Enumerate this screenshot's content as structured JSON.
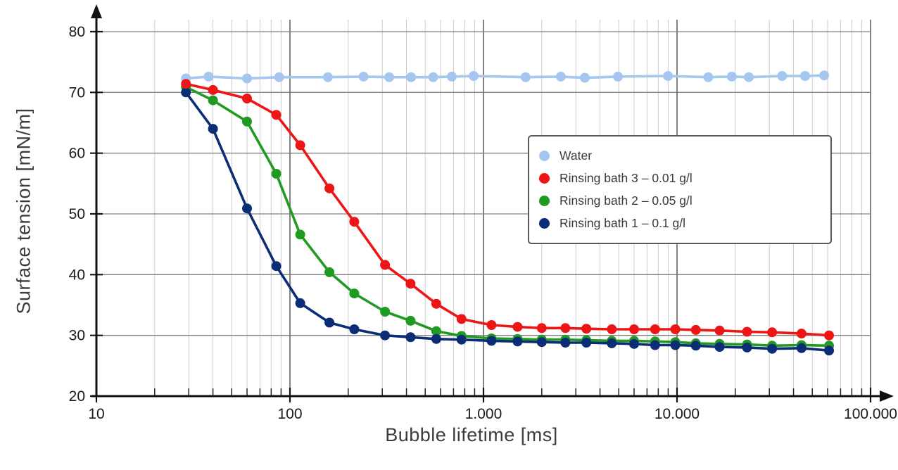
{
  "chart_data": {
    "type": "line",
    "title": "",
    "xlabel": "Bubble lifetime [ms]",
    "ylabel": "Surface tension [mN/m]",
    "x_scale": "log",
    "xlim": [
      10,
      100000
    ],
    "ylim": [
      20,
      80
    ],
    "grid": "on",
    "legend_position": "upper right",
    "x_ticks": {
      "values": [
        10,
        100,
        1000,
        10000,
        100000
      ],
      "labels": [
        "10",
        "100",
        "1.000",
        "10.000",
        "100.000"
      ]
    },
    "y_ticks": [
      20,
      30,
      40,
      50,
      60,
      70,
      80
    ],
    "series": [
      {
        "name": "Water",
        "color": "#a4c6ef",
        "x": [
          29,
          38,
          60,
          88,
          157,
          240,
          326,
          423,
          550,
          686,
          890,
          1650,
          2510,
          3340,
          4950,
          8980,
          14500,
          19200,
          23500,
          34900,
          45900,
          57600
        ],
        "y": [
          72.3,
          72.6,
          72.3,
          72.5,
          72.5,
          72.6,
          72.5,
          72.5,
          72.5,
          72.6,
          72.7,
          72.5,
          72.6,
          72.4,
          72.6,
          72.7,
          72.5,
          72.6,
          72.5,
          72.7,
          72.7,
          72.8
        ]
      },
      {
        "name": "Rinsing bath 3 – 0.01 g/l",
        "color": "#ed1515",
        "x": [
          29,
          40,
          60,
          85,
          113,
          160,
          215,
          310,
          420,
          570,
          770,
          1100,
          1500,
          2000,
          2650,
          3400,
          4600,
          6000,
          7700,
          9800,
          12500,
          16600,
          23000,
          31000,
          44000,
          61000
        ],
        "y": [
          71.4,
          70.4,
          69.0,
          66.3,
          61.3,
          54.2,
          48.7,
          41.6,
          38.5,
          35.2,
          32.7,
          31.7,
          31.4,
          31.2,
          31.2,
          31.1,
          31.0,
          31.0,
          31.0,
          31.0,
          30.9,
          30.8,
          30.6,
          30.5,
          30.3,
          30.0
        ]
      },
      {
        "name": "Rinsing bath 2 – 0.05 g/l",
        "color": "#219a21",
        "x": [
          29,
          40,
          60,
          85,
          113,
          160,
          215,
          310,
          420,
          570,
          770,
          1100,
          1500,
          2000,
          2650,
          3400,
          4600,
          6000,
          7700,
          9800,
          12500,
          16600,
          23000,
          31000,
          44000,
          61000
        ],
        "y": [
          70.9,
          68.7,
          65.2,
          56.6,
          46.6,
          40.4,
          36.9,
          33.9,
          32.4,
          30.7,
          29.9,
          29.5,
          29.4,
          29.3,
          29.3,
          29.2,
          29.1,
          29.1,
          29.0,
          28.9,
          28.7,
          28.6,
          28.5,
          28.3,
          28.4,
          28.3
        ]
      },
      {
        "name": "Rinsing bath 1 – 0.1 g/l",
        "color": "#0b2d75",
        "x": [
          29,
          40,
          60,
          85,
          113,
          160,
          215,
          310,
          420,
          570,
          770,
          1100,
          1500,
          2000,
          2650,
          3400,
          4600,
          6000,
          7700,
          9800,
          12500,
          16600,
          23000,
          31000,
          44000,
          61000
        ],
        "y": [
          70.0,
          64.0,
          50.9,
          41.4,
          35.3,
          32.1,
          31.0,
          30.0,
          29.7,
          29.4,
          29.3,
          29.1,
          29.0,
          28.9,
          28.8,
          28.8,
          28.7,
          28.6,
          28.4,
          28.4,
          28.3,
          28.1,
          28.0,
          27.8,
          27.9,
          27.5
        ]
      }
    ]
  }
}
